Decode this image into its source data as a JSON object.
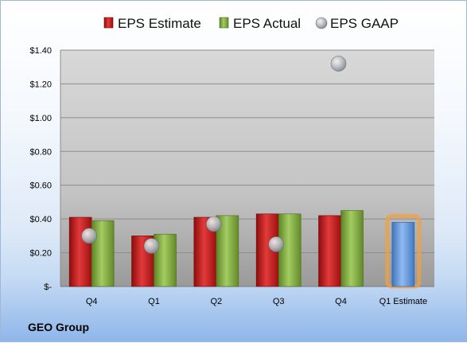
{
  "company": "GEO Group",
  "colors": {
    "estimate": "#cc1f1f",
    "actual": "#7faa3c",
    "gaap": "#b8bcc2",
    "future_estimate": "#5b93d8",
    "highlight": "#f0a040"
  },
  "chart_data": {
    "type": "bar",
    "categories": [
      "Q4",
      "Q1",
      "Q2",
      "Q3",
      "Q4",
      "Q1 Estimate"
    ],
    "series": [
      {
        "name": "EPS Estimate",
        "values": [
          0.41,
          0.3,
          0.41,
          0.43,
          0.42,
          0.38
        ]
      },
      {
        "name": "EPS Actual",
        "values": [
          0.39,
          0.31,
          0.42,
          0.43,
          0.45,
          null
        ]
      },
      {
        "name": "EPS GAAP",
        "values": [
          0.3,
          0.24,
          0.37,
          0.25,
          1.32,
          null
        ]
      }
    ],
    "y_ticks": [
      "$-",
      "$0.20",
      "$0.40",
      "$0.60",
      "$0.80",
      "$1.00",
      "$1.20",
      "$1.40"
    ],
    "ylim": [
      0,
      1.4
    ],
    "legend": [
      "EPS Estimate",
      "EPS Actual",
      "EPS GAAP"
    ],
    "legend_position": "top",
    "grid": true
  }
}
